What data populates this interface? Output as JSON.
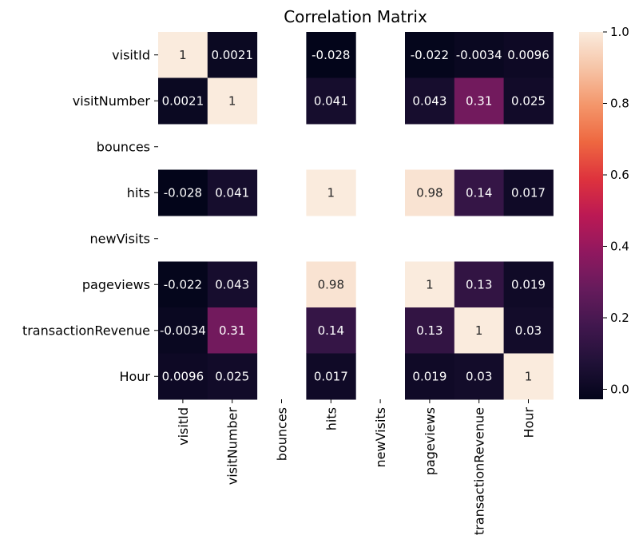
{
  "chart_data": {
    "type": "heatmap",
    "title": "Correlation Matrix",
    "xlabel": "",
    "ylabel": "",
    "labels": [
      "visitId",
      "visitNumber",
      "bounces",
      "hits",
      "newVisits",
      "pageviews",
      "transactionRevenue",
      "Hour"
    ],
    "values": [
      [
        1,
        0.0021,
        null,
        -0.028,
        null,
        -0.022,
        -0.0034,
        0.0096
      ],
      [
        0.0021,
        1,
        null,
        0.041,
        null,
        0.043,
        0.31,
        0.025
      ],
      [
        null,
        null,
        null,
        null,
        null,
        null,
        null,
        null
      ],
      [
        -0.028,
        0.041,
        null,
        1,
        null,
        0.98,
        0.14,
        0.017
      ],
      [
        null,
        null,
        null,
        null,
        null,
        null,
        null,
        null
      ],
      [
        -0.022,
        0.043,
        null,
        0.98,
        null,
        1,
        0.13,
        0.019
      ],
      [
        -0.0034,
        0.31,
        null,
        0.14,
        null,
        0.13,
        1,
        0.03
      ],
      [
        0.0096,
        0.025,
        null,
        0.017,
        null,
        0.019,
        0.03,
        1
      ]
    ],
    "colorbar": {
      "ticks": [
        "0.0",
        "0.2",
        "0.4",
        "0.6",
        "0.8",
        "1.0"
      ],
      "range": [
        -0.028,
        1.0
      ]
    },
    "legend": "right",
    "grid": false
  }
}
